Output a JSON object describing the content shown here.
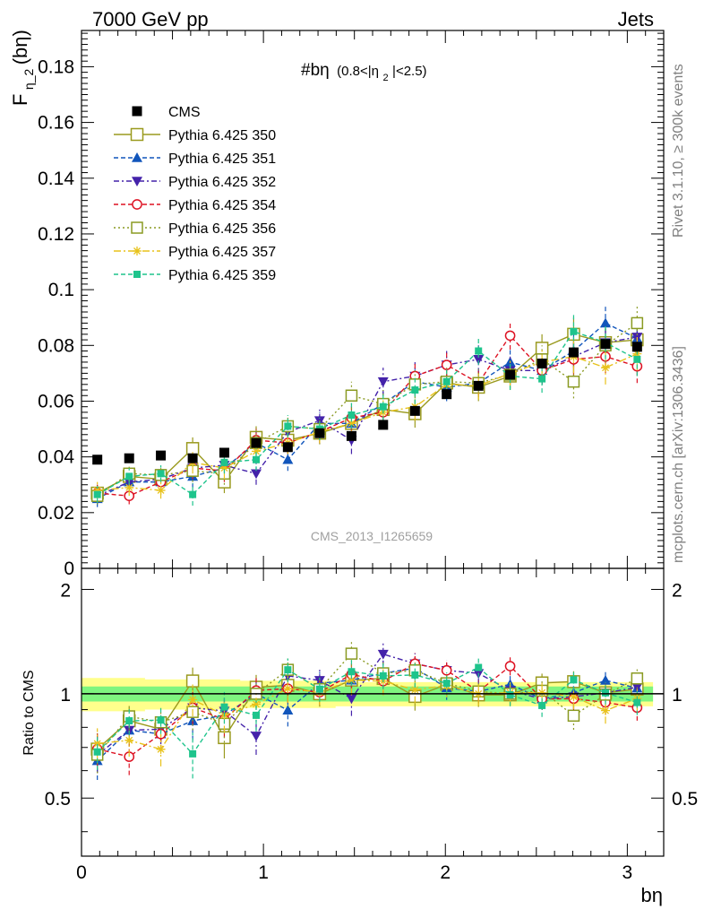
{
  "header": {
    "left": "7000 GeV pp",
    "right": "Jets"
  },
  "side_texts": {
    "rivet": "Rivet 3.1.10, ≥ 300k events",
    "mcplots": "mcplots.cern.ch [arXiv:1306.3436]"
  },
  "watermark": "CMS_2013_I1265659",
  "chart_data": {
    "type": "scatter",
    "title": "#bη (0.8<|η_2|<2.5)",
    "title_main": "#bη",
    "title_paren_open": "(0.8<|η",
    "title_sub": "2",
    "title_paren_close": "|<2.5)",
    "ylabel": "F_η_2(bη)",
    "ylabel_main": "F",
    "ylabel_sub": "η_2",
    "ylabel_tail": "(bη)",
    "xlabel": "bη",
    "ratio_ylabel": "Ratio to CMS",
    "xlim": [
      0,
      3.2
    ],
    "ylim": [
      0,
      0.193
    ],
    "ratio_ylim": [
      0.34,
      2.3
    ],
    "x_ticks": [
      0,
      1,
      2,
      3
    ],
    "x_tick_labels": [
      "0",
      "1",
      "2",
      "3"
    ],
    "y_ticks": [
      0,
      0.02,
      0.04,
      0.06,
      0.08,
      0.1,
      0.12,
      0.14,
      0.16,
      0.18
    ],
    "y_tick_labels": [
      "0",
      "0.02",
      "0.04",
      "0.06",
      "0.08",
      "0.1",
      "0.12",
      "0.14",
      "0.16",
      "0.18"
    ],
    "ratio_ticks": [
      0.5,
      1,
      2
    ],
    "ratio_tick_labels": [
      "0.5",
      "1",
      "2"
    ],
    "x": [
      0.087,
      0.262,
      0.436,
      0.611,
      0.785,
      0.96,
      1.134,
      1.309,
      1.484,
      1.658,
      1.833,
      2.007,
      2.182,
      2.356,
      2.531,
      2.705,
      2.88,
      3.054
    ],
    "data": {
      "name": "CMS",
      "values": [
        0.039,
        0.0395,
        0.0405,
        0.0395,
        0.0415,
        0.045,
        0.0435,
        0.0485,
        0.0475,
        0.0515,
        0.0565,
        0.0625,
        0.0655,
        0.0695,
        0.0735,
        0.0775,
        0.0805,
        0.0795
      ],
      "errors": [
        0.0008,
        0.0008,
        0.0008,
        0.0008,
        0.0008,
        0.0009,
        0.0009,
        0.001,
        0.001,
        0.001,
        0.0011,
        0.0012,
        0.0013,
        0.0014,
        0.0015,
        0.0016,
        0.0017,
        0.0018
      ],
      "color": "#000000"
    },
    "band": {
      "inner": [
        0.05,
        0.05,
        0.05,
        0.05,
        0.05,
        0.05,
        0.05,
        0.05,
        0.05,
        0.05,
        0.05,
        0.05,
        0.05,
        0.05,
        0.05,
        0.05,
        0.05,
        0.05
      ],
      "outer": [
        0.11,
        0.11,
        0.1,
        0.1,
        0.1,
        0.09,
        0.09,
        0.09,
        0.08,
        0.08,
        0.08,
        0.08,
        0.08,
        0.08,
        0.08,
        0.08,
        0.08,
        0.08
      ],
      "inner_color": "#7ff57f",
      "outer_color": "#ffff8c"
    },
    "series": [
      {
        "name": "Pythia 6.425 350",
        "color": "#9a9a1e",
        "marker": "square-open",
        "dash": "none",
        "size": 13,
        "values": [
          0.027,
          0.033,
          0.032,
          0.043,
          0.031,
          0.047,
          0.046,
          0.0485,
          0.052,
          0.057,
          0.0555,
          0.0665,
          0.065,
          0.069,
          0.079,
          0.084,
          0.081,
          0.082
        ],
        "errors": [
          0.003,
          0.003,
          0.003,
          0.004,
          0.004,
          0.004,
          0.004,
          0.004,
          0.004,
          0.004,
          0.005,
          0.005,
          0.005,
          0.005,
          0.005,
          0.006,
          0.006,
          0.006
        ]
      },
      {
        "name": "Pythia 6.425 351",
        "color": "#1155bb",
        "marker": "triangle-up",
        "dash": "5,3",
        "size": 12,
        "values": [
          0.025,
          0.031,
          0.031,
          0.033,
          0.036,
          0.045,
          0.039,
          0.052,
          0.052,
          0.059,
          0.067,
          0.065,
          0.0665,
          0.074,
          0.071,
          0.078,
          0.088,
          0.0825
        ],
        "errors": [
          0.003,
          0.003,
          0.003,
          0.004,
          0.004,
          0.004,
          0.004,
          0.004,
          0.005,
          0.005,
          0.005,
          0.005,
          0.005,
          0.005,
          0.005,
          0.006,
          0.006,
          0.006
        ]
      },
      {
        "name": "Pythia 6.425 352",
        "color": "#4422aa",
        "marker": "triangle-down",
        "dash": "6,3,2,3",
        "size": 12,
        "values": [
          0.026,
          0.031,
          0.032,
          0.036,
          0.037,
          0.034,
          0.049,
          0.053,
          0.046,
          0.067,
          0.069,
          0.073,
          0.075,
          0.071,
          0.071,
          0.076,
          0.081,
          0.083
        ],
        "errors": [
          0.003,
          0.003,
          0.003,
          0.004,
          0.004,
          0.004,
          0.004,
          0.004,
          0.005,
          0.005,
          0.005,
          0.005,
          0.005,
          0.005,
          0.005,
          0.006,
          0.006,
          0.006
        ]
      },
      {
        "name": "Pythia 6.425 354",
        "color": "#dd1122",
        "marker": "circle-open",
        "dash": "5,3",
        "size": 12,
        "values": [
          0.027,
          0.026,
          0.031,
          0.036,
          0.035,
          0.046,
          0.045,
          0.049,
          0.054,
          0.056,
          0.069,
          0.073,
          0.0665,
          0.0835,
          0.071,
          0.075,
          0.076,
          0.0725
        ],
        "errors": [
          0.003,
          0.003,
          0.003,
          0.004,
          0.004,
          0.004,
          0.004,
          0.004,
          0.005,
          0.005,
          0.005,
          0.005,
          0.005,
          0.005,
          0.005,
          0.006,
          0.006,
          0.006
        ]
      },
      {
        "name": "Pythia 6.425 356",
        "color": "#8a9a22",
        "marker": "square-open",
        "dash": "2,3",
        "size": 12,
        "values": [
          0.026,
          0.034,
          0.0335,
          0.035,
          0.034,
          0.045,
          0.051,
          0.05,
          0.062,
          0.059,
          0.066,
          0.067,
          0.0665,
          0.0695,
          0.075,
          0.067,
          0.08,
          0.088
        ],
        "errors": [
          0.003,
          0.003,
          0.003,
          0.004,
          0.004,
          0.004,
          0.004,
          0.004,
          0.005,
          0.005,
          0.005,
          0.005,
          0.005,
          0.005,
          0.005,
          0.006,
          0.006,
          0.006
        ]
      },
      {
        "name": "Pythia 6.425 357",
        "color": "#e8c21a",
        "marker": "star",
        "dash": "8,3,2,3",
        "size": 10,
        "values": [
          0.028,
          0.029,
          0.028,
          0.038,
          0.036,
          0.042,
          0.045,
          0.049,
          0.052,
          0.056,
          0.058,
          0.066,
          0.0655,
          0.07,
          0.074,
          0.076,
          0.072,
          0.077
        ],
        "errors": [
          0.003,
          0.003,
          0.003,
          0.004,
          0.004,
          0.004,
          0.004,
          0.004,
          0.005,
          0.005,
          0.005,
          0.005,
          0.005,
          0.005,
          0.005,
          0.006,
          0.006,
          0.006
        ]
      },
      {
        "name": "Pythia 6.425 359",
        "color": "#1ec48c",
        "marker": "square-filled",
        "dash": "5,3",
        "size": 8,
        "values": [
          0.0265,
          0.033,
          0.034,
          0.0265,
          0.038,
          0.039,
          0.051,
          0.05,
          0.055,
          0.058,
          0.064,
          0.067,
          0.078,
          0.069,
          0.068,
          0.085,
          0.081,
          0.075
        ],
        "errors": [
          0.003,
          0.003,
          0.003,
          0.004,
          0.004,
          0.004,
          0.004,
          0.004,
          0.005,
          0.005,
          0.005,
          0.005,
          0.005,
          0.005,
          0.005,
          0.006,
          0.006,
          0.006
        ]
      }
    ]
  }
}
